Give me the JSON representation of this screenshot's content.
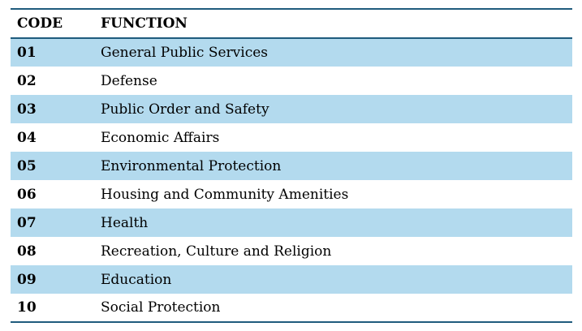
{
  "colors": {
    "stripe": "#B3DAEE",
    "border": "#1F5B7D",
    "text": "#000000",
    "background": "#FFFFFF"
  },
  "table": {
    "columns": [
      "CODE",
      "FUNCTION"
    ],
    "rows": [
      {
        "code": "01",
        "function": "General Public Services"
      },
      {
        "code": "02",
        "function": "Defense"
      },
      {
        "code": "03",
        "function": "Public Order and Safety"
      },
      {
        "code": "04",
        "function": "Economic Affairs"
      },
      {
        "code": "05",
        "function": "Environmental Protection"
      },
      {
        "code": "06",
        "function": "Housing and Community Amenities"
      },
      {
        "code": "07",
        "function": "Health"
      },
      {
        "code": "08",
        "function": "Recreation, Culture and Religion"
      },
      {
        "code": "09",
        "function": "Education"
      },
      {
        "code": "10",
        "function": "Social Protection"
      }
    ]
  }
}
